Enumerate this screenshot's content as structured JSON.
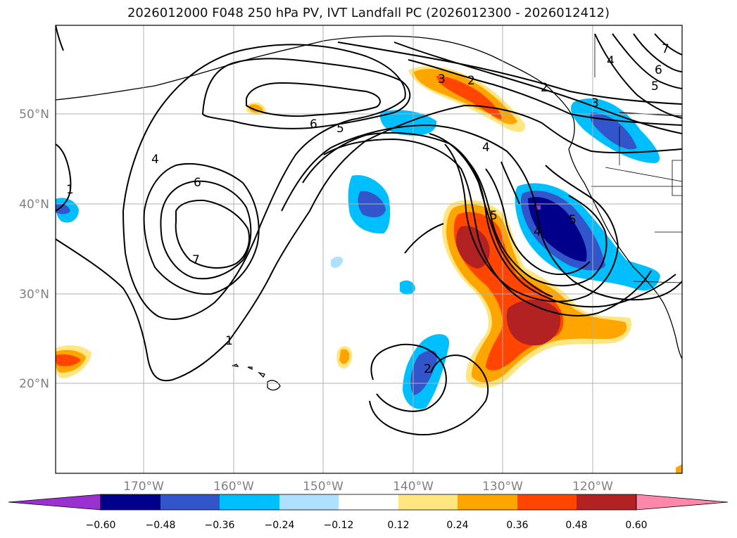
{
  "title": "2026012000 F048 250 hPa PV, IVT Landfall PC (2026012300 - 2026012412)",
  "lat_labels": [
    "50°N",
    "40°N",
    "30°N",
    "20°N"
  ],
  "lon_labels": [
    "170°W",
    "160°W",
    "150°W",
    "140°W",
    "130°W",
    "120°W"
  ],
  "colorbar": {
    "ticks": [
      "−0.60",
      "−0.48",
      "−0.36",
      "−0.24",
      "−0.12",
      "0.12",
      "0.24",
      "0.36",
      "0.48",
      "0.60"
    ],
    "colors": [
      "#9b30d0",
      "#00008b",
      "#3355cc",
      "#00bfff",
      "#b0e0ff",
      "#ffffff",
      "#ffe680",
      "#ffa500",
      "#ff4500",
      "#b22222",
      "#ff88aa"
    ]
  },
  "contour_labels": [
    "3",
    "2",
    "1",
    "6",
    "5",
    "4",
    "7",
    "6",
    "5",
    "4",
    "6",
    "7",
    "5",
    "4",
    "3",
    "2",
    "1",
    "2",
    "4",
    "5"
  ],
  "colors": {
    "axis_text": "#808080",
    "grid": "#b0b0b0"
  }
}
